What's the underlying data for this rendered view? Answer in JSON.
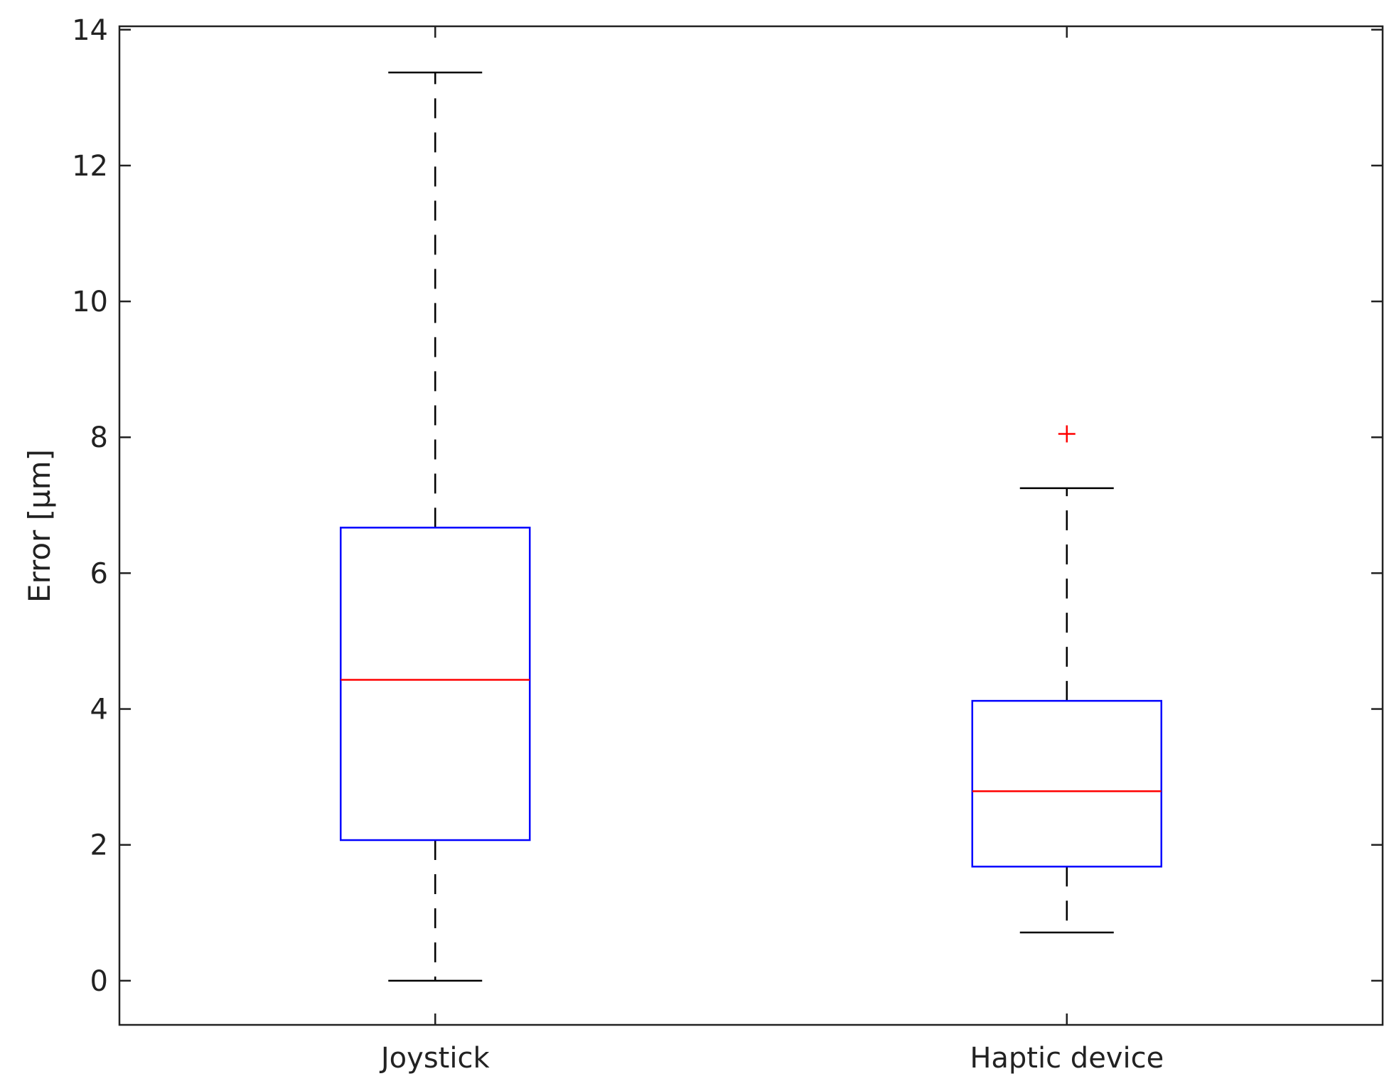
{
  "chart_data": {
    "type": "box",
    "title": "",
    "xlabel": "",
    "ylabel": "Error [µm]",
    "ylim": [
      -0.65,
      14.05
    ],
    "yticks": [
      0,
      2,
      4,
      6,
      8,
      10,
      12,
      14
    ],
    "grid": false,
    "categories": [
      "Joystick",
      "Haptic device"
    ],
    "boxes": [
      {
        "category": "Joystick",
        "whisker_low": 0.0,
        "q1": 2.07,
        "median": 4.43,
        "q3": 6.67,
        "whisker_high": 13.37,
        "outliers": []
      },
      {
        "category": "Haptic device",
        "whisker_low": 0.71,
        "q1": 1.68,
        "median": 2.79,
        "q3": 4.12,
        "whisker_high": 7.25,
        "outliers": [
          8.05
        ]
      }
    ],
    "colors": {
      "box": "#0000ff",
      "median": "#ff0000",
      "whisker": "#000000",
      "outlier": "#ff0000",
      "axis": "#222222"
    }
  }
}
